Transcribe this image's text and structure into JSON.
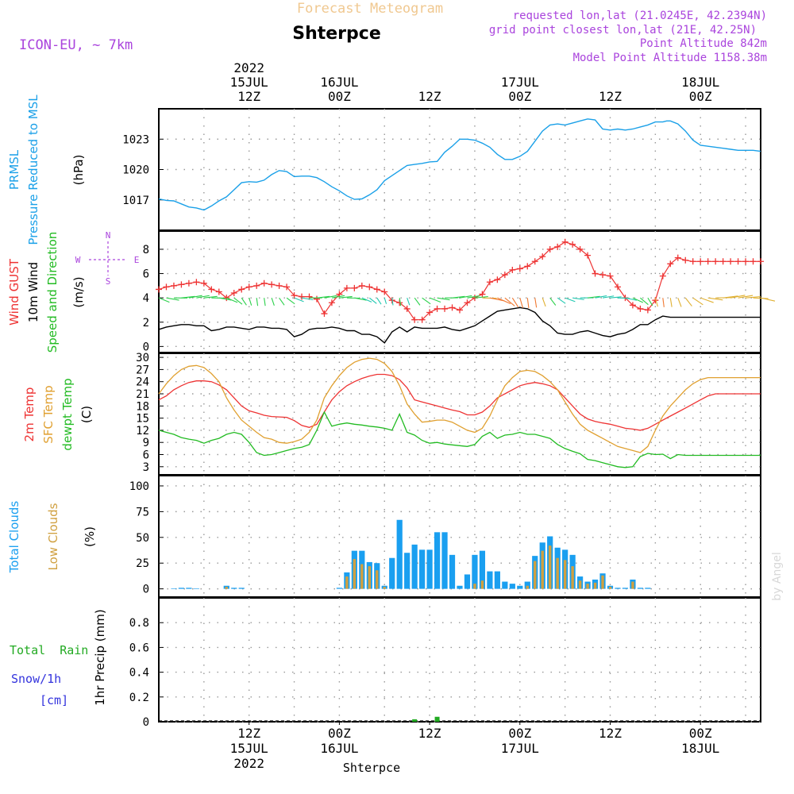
{
  "header": {
    "subtitle": "Forecast Meteogram",
    "location": "Shterpce",
    "model": "ICON-EU, ~ 7km",
    "requested": "requested lon,lat (21.0245E, 42.2394N)",
    "grid_point": "grid point closest lon,lat (21E, 42.25N)",
    "altitude": "Point Altitude 842m",
    "model_altitude": "Model Point Altitude 1158.38m",
    "watermark": "by Angel",
    "footer_location": "Shterpce"
  },
  "colors": {
    "pressure": "#1aa0e8",
    "gust": "#ee3333",
    "wind": "#000000",
    "temp2m": "#ee3333",
    "sfc_temp": "#e0a030",
    "dewpt": "#22bb22",
    "total_clouds": "#1a9ff0",
    "low_clouds": "#d0a040",
    "rain": "#22aa22",
    "snow": "#3333dd",
    "header_purple": "#aa44dd",
    "header_orange": "#f0c890"
  },
  "time_axis": {
    "top_ticks": [
      {
        "h": 12,
        "lines": [
          "2022",
          "15JUL",
          "12Z"
        ]
      },
      {
        "h": 24,
        "lines": [
          "16JUL",
          "00Z"
        ]
      },
      {
        "h": 36,
        "lines": [
          "12Z"
        ]
      },
      {
        "h": 48,
        "lines": [
          "17JUL",
          "00Z"
        ]
      },
      {
        "h": 60,
        "lines": [
          "12Z"
        ]
      },
      {
        "h": 72,
        "lines": [
          "18JUL",
          "00Z"
        ]
      }
    ],
    "bottom_ticks": [
      {
        "h": 12,
        "lines": [
          "12Z",
          "15JUL",
          "2022"
        ]
      },
      {
        "h": 24,
        "lines": [
          "00Z",
          "16JUL"
        ]
      },
      {
        "h": 36,
        "lines": [
          "12Z"
        ]
      },
      {
        "h": 48,
        "lines": [
          "00Z",
          "17JUL"
        ]
      },
      {
        "h": 60,
        "lines": [
          "12Z"
        ]
      },
      {
        "h": 72,
        "lines": [
          "00Z",
          "18JUL"
        ]
      }
    ]
  },
  "panel_labels": {
    "pressure": {
      "l1": "PRMSL",
      "l2": "Pressure Reduced to MSL",
      "unit": "(hPa)"
    },
    "wind": {
      "gust": "Wind GUST",
      "l2": "10m Wind",
      "l3": "Speed and Direction",
      "unit": "(m/s)",
      "compass_n": "N",
      "compass_s": "S",
      "compass_w": "W",
      "compass_e": "E"
    },
    "temp": {
      "l1": "2m Temp",
      "l2": "SFC Temp",
      "l3": "dewpt Temp",
      "unit": "(C)"
    },
    "clouds": {
      "l1": "Total Clouds",
      "l2": "Low Clouds",
      "unit": "(%)"
    },
    "precip": {
      "rain": "Total  Rain",
      "snow": "Snow/1h",
      "snow_unit": "[cm]",
      "axis": "1hr Precip (mm)"
    }
  },
  "chart_data": [
    {
      "type": "line",
      "name": "pressure",
      "ylabel": "(hPa)",
      "ylim": [
        1014,
        1026
      ],
      "yticks": [
        1017,
        1020,
        1023
      ],
      "x": [
        0,
        1,
        2,
        3,
        4,
        5,
        6,
        7,
        8,
        9,
        10,
        11,
        12,
        13,
        14,
        15,
        16,
        17,
        18,
        19,
        20,
        21,
        22,
        23,
        24,
        25,
        26,
        27,
        28,
        29,
        30,
        31,
        32,
        33,
        34,
        35,
        36,
        37,
        38,
        39,
        40,
        41,
        42,
        43,
        44,
        45,
        46,
        47,
        48,
        49,
        50,
        51,
        52,
        53,
        54,
        55,
        56,
        57,
        58,
        59,
        60,
        61,
        62,
        63,
        64,
        65,
        66,
        67,
        67.5,
        68,
        69,
        70,
        71,
        72,
        73,
        74,
        75,
        76,
        77,
        78,
        79,
        80
      ],
      "series": [
        {
          "values": [
            1017.1,
            1016.95,
            1016.9,
            1016.6,
            1016.3,
            1016.2,
            1016.0,
            1016.4,
            1016.9,
            1017.3,
            1018.0,
            1018.7,
            1018.8,
            1018.75,
            1018.95,
            1019.5,
            1019.9,
            1019.8,
            1019.3,
            1019.35,
            1019.35,
            1019.2,
            1018.8,
            1018.3,
            1017.9,
            1017.4,
            1017.05,
            1017.1,
            1017.5,
            1018.0,
            1018.9,
            1019.4,
            1019.9,
            1020.4,
            1020.5,
            1020.6,
            1020.75,
            1020.8,
            1021.7,
            1022.3,
            1023.0,
            1023.0,
            1022.9,
            1022.6,
            1022.2,
            1021.5,
            1021.0,
            1021.0,
            1021.3,
            1021.8,
            1022.8,
            1023.8,
            1024.4,
            1024.5,
            1024.4,
            1024.6,
            1024.8,
            1025.0,
            1024.9,
            1024.0,
            1023.9,
            1024.0,
            1023.9,
            1024.0,
            1024.2,
            1024.4,
            1024.7,
            1024.7,
            1024.8,
            1024.8,
            1024.5,
            1023.8,
            1022.9,
            1022.4,
            1022.3,
            1022.2,
            1022.1,
            1022.0,
            1021.9,
            1021.9,
            1021.9,
            1021.8
          ]
        }
      ]
    },
    {
      "type": "line",
      "name": "wind",
      "ylabel": "(m/s)",
      "ylim": [
        -0.5,
        9.5
      ],
      "yticks": [
        0,
        2,
        4,
        6,
        8
      ],
      "x": [
        0,
        1,
        2,
        3,
        4,
        5,
        6,
        7,
        8,
        9,
        10,
        11,
        12,
        13,
        14,
        15,
        16,
        17,
        18,
        19,
        20,
        21,
        22,
        23,
        24,
        25,
        26,
        27,
        28,
        29,
        30,
        31,
        32,
        33,
        34,
        35,
        36,
        37,
        38,
        39,
        40,
        41,
        42,
        43,
        44,
        45,
        46,
        47,
        48,
        49,
        50,
        51,
        52,
        53,
        54,
        55,
        56,
        57,
        58,
        59,
        60,
        61,
        62,
        63,
        64,
        65,
        66,
        67,
        68,
        69,
        70,
        71,
        72,
        73,
        74,
        75,
        76,
        77,
        78,
        79,
        80
      ],
      "series": [
        {
          "name": "Wind GUST",
          "values": [
            4.7,
            4.9,
            5.0,
            5.1,
            5.2,
            5.3,
            5.2,
            4.7,
            4.5,
            4.0,
            4.4,
            4.7,
            4.9,
            5.0,
            5.2,
            5.1,
            5.0,
            4.9,
            4.2,
            4.1,
            4.1,
            3.9,
            2.7,
            3.6,
            4.3,
            4.8,
            4.8,
            5.0,
            4.9,
            4.7,
            4.5,
            3.8,
            3.6,
            3.1,
            2.2,
            2.2,
            2.8,
            3.1,
            3.1,
            3.2,
            3.0,
            3.6,
            4.0,
            4.3,
            5.3,
            5.5,
            5.9,
            6.3,
            6.4,
            6.6,
            7.0,
            7.4,
            8.0,
            8.2,
            8.6,
            8.4,
            8.0,
            7.5,
            6.0,
            5.9,
            5.8,
            4.9,
            4.0,
            3.4,
            3.1,
            3.0,
            3.8,
            5.8,
            6.8,
            7.3,
            7.1,
            7.0,
            7.0,
            7.0,
            7.0,
            7.0,
            7.0,
            7.0,
            7.0,
            7.0,
            7.0
          ]
        },
        {
          "name": "10m Wind",
          "values": [
            1.4,
            1.6,
            1.7,
            1.8,
            1.8,
            1.7,
            1.7,
            1.3,
            1.4,
            1.6,
            1.6,
            1.5,
            1.4,
            1.6,
            1.6,
            1.5,
            1.5,
            1.4,
            0.8,
            1.0,
            1.4,
            1.5,
            1.5,
            1.6,
            1.5,
            1.3,
            1.3,
            1.0,
            1.0,
            0.8,
            0.3,
            1.2,
            1.6,
            1.2,
            1.6,
            1.5,
            1.5,
            1.5,
            1.6,
            1.4,
            1.3,
            1.5,
            1.7,
            2.1,
            2.5,
            2.9,
            3.0,
            3.1,
            3.2,
            3.1,
            2.8,
            2.1,
            1.7,
            1.1,
            1.0,
            1.0,
            1.2,
            1.3,
            1.1,
            0.9,
            0.8,
            1.0,
            1.1,
            1.4,
            1.8,
            1.8,
            2.2,
            2.5,
            2.4,
            2.4,
            2.4,
            2.4,
            2.4,
            2.4,
            2.4,
            2.4,
            2.4,
            2.4,
            2.4,
            2.4,
            2.4
          ]
        }
      ]
    },
    {
      "type": "line",
      "name": "temperature",
      "ylabel": "(C)",
      "ylim": [
        1,
        31
      ],
      "yticks": [
        3,
        6,
        9,
        12,
        15,
        18,
        21,
        24,
        27,
        30
      ],
      "x": [
        0,
        1,
        2,
        3,
        4,
        5,
        6,
        7,
        8,
        9,
        10,
        11,
        12,
        13,
        14,
        15,
        16,
        17,
        18,
        19,
        20,
        21,
        22,
        23,
        24,
        25,
        26,
        27,
        28,
        29,
        30,
        31,
        32,
        33,
        34,
        35,
        36,
        37,
        38,
        39,
        40,
        41,
        42,
        43,
        44,
        45,
        46,
        47,
        48,
        49,
        50,
        51,
        52,
        53,
        54,
        55,
        56,
        57,
        58,
        59,
        60,
        61,
        62,
        63,
        64,
        65,
        66,
        67,
        68,
        69,
        70,
        71,
        72,
        73,
        74,
        75,
        76,
        77,
        78,
        79,
        80
      ],
      "series": [
        {
          "name": "2m Temp",
          "values": [
            19.5,
            20.5,
            22.0,
            23.0,
            23.8,
            24.2,
            24.2,
            24.0,
            23.2,
            22.0,
            20.0,
            18.0,
            16.8,
            16.3,
            15.7,
            15.4,
            15.3,
            15.2,
            14.4,
            13.2,
            12.7,
            13.5,
            16.5,
            19.5,
            21.5,
            23.0,
            24.0,
            24.8,
            25.4,
            25.8,
            25.8,
            25.5,
            24.5,
            22.5,
            19.5,
            19.0,
            18.5,
            18.0,
            17.5,
            17.0,
            16.6,
            15.8,
            15.8,
            16.5,
            18.0,
            20.0,
            21.0,
            22.0,
            23.0,
            23.5,
            23.8,
            23.5,
            23.0,
            22.0,
            20.0,
            18.0,
            16.0,
            14.8,
            14.2,
            13.8,
            13.5,
            13.0,
            12.5,
            12.3,
            12.0,
            12.5,
            13.5,
            14.5,
            15.5,
            16.5,
            17.5,
            18.5,
            19.5,
            20.5,
            21.0,
            21.0,
            21.0,
            21.0,
            21.0,
            21.0,
            21.0
          ]
        },
        {
          "name": "SFC Temp",
          "values": [
            21.0,
            23.5,
            25.5,
            27.0,
            27.8,
            28.0,
            27.5,
            26.0,
            24.0,
            20.0,
            17.0,
            14.5,
            13.0,
            11.5,
            10.2,
            9.8,
            9.0,
            8.8,
            9.2,
            9.8,
            11.5,
            14.5,
            20.0,
            23.0,
            25.5,
            27.5,
            28.8,
            29.5,
            29.8,
            29.5,
            28.5,
            26.5,
            23.0,
            18.5,
            16.0,
            14.0,
            14.2,
            14.5,
            14.5,
            14.0,
            13.0,
            12.0,
            11.5,
            12.5,
            15.5,
            19.5,
            23.0,
            25.0,
            26.5,
            26.8,
            26.5,
            25.5,
            24.0,
            22.0,
            19.0,
            16.0,
            13.5,
            12.0,
            11.0,
            10.0,
            9.0,
            8.0,
            7.5,
            7.0,
            6.5,
            8.0,
            12.0,
            15.5,
            18.0,
            20.0,
            22.0,
            23.5,
            24.5,
            25.0,
            25.0,
            25.0,
            25.0,
            25.0,
            25.0,
            25.0,
            25.0
          ]
        },
        {
          "name": "dewpt Temp",
          "values": [
            12.0,
            11.5,
            11.0,
            10.2,
            9.8,
            9.5,
            8.8,
            9.5,
            10.0,
            11.0,
            11.5,
            11.0,
            9.0,
            6.5,
            5.8,
            6.0,
            6.5,
            7.0,
            7.5,
            7.8,
            8.5,
            12.0,
            16.5,
            13.0,
            13.5,
            13.8,
            13.5,
            13.3,
            13.0,
            12.8,
            12.5,
            12.0,
            16.0,
            11.5,
            10.8,
            9.5,
            8.8,
            9.0,
            8.6,
            8.4,
            8.2,
            8.0,
            8.5,
            10.5,
            11.5,
            10.0,
            10.8,
            11.0,
            11.5,
            11.0,
            11.0,
            10.5,
            10.0,
            8.5,
            7.5,
            6.8,
            6.2,
            4.8,
            4.5,
            4.0,
            3.5,
            3.0,
            2.8,
            3.0,
            5.5,
            6.3,
            6.0,
            6.1,
            5.0,
            6.0,
            5.8,
            5.8,
            5.8,
            5.8,
            5.8,
            5.8,
            5.8,
            5.8,
            5.8,
            5.8,
            5.8
          ]
        }
      ]
    },
    {
      "type": "bar",
      "name": "clouds",
      "ylabel": "(%)",
      "ylim": [
        -8,
        110
      ],
      "yticks": [
        0,
        25,
        50,
        75,
        100
      ],
      "x": [
        0,
        1,
        2,
        3,
        4,
        5,
        6,
        7,
        8,
        9,
        10,
        11,
        12,
        13,
        14,
        15,
        16,
        17,
        18,
        19,
        20,
        21,
        22,
        23,
        24,
        25,
        26,
        27,
        28,
        29,
        30,
        31,
        32,
        33,
        34,
        35,
        36,
        37,
        38,
        39,
        40,
        41,
        42,
        43,
        44,
        45,
        46,
        47,
        48,
        49,
        50,
        51,
        52,
        53,
        54,
        55,
        56,
        57,
        58,
        59,
        60,
        61,
        62,
        63,
        64,
        65,
        66,
        67,
        68,
        69,
        70,
        71,
        72,
        73,
        74,
        75,
        76,
        77,
        78,
        79,
        80
      ],
      "series": [
        {
          "name": "Total Clouds",
          "values": [
            0,
            0,
            0.5,
            1,
            1,
            0.5,
            0,
            0,
            0,
            3,
            1,
            1,
            0,
            0,
            0,
            0,
            0,
            0,
            0,
            0,
            0,
            0,
            0,
            0,
            1,
            16,
            37,
            37,
            26,
            25,
            3,
            30,
            67,
            35,
            43,
            38,
            38,
            55,
            55,
            33,
            3,
            14,
            33,
            37,
            17,
            17,
            7,
            5,
            3,
            7,
            32,
            45,
            51,
            40,
            38,
            33,
            12,
            7,
            9,
            15,
            3,
            1,
            1,
            9,
            1,
            1,
            0,
            0,
            0,
            0,
            0,
            0,
            0,
            0,
            0,
            0,
            0,
            0,
            0,
            0,
            0
          ]
        },
        {
          "name": "Low Clouds",
          "values": [
            0,
            0,
            0,
            0,
            0,
            0,
            0,
            0,
            0,
            2,
            0,
            0,
            0,
            0,
            0,
            0,
            0,
            0,
            0,
            0,
            0,
            0,
            0,
            0,
            0,
            12,
            29,
            24,
            22,
            18,
            2,
            0,
            0,
            0,
            0,
            0,
            0,
            0,
            0,
            0,
            0,
            0,
            5,
            8,
            0,
            0,
            0,
            0,
            0,
            3,
            27,
            37,
            42,
            30,
            28,
            22,
            8,
            5,
            6,
            13,
            2,
            0,
            0,
            7,
            0,
            0,
            0,
            0,
            0,
            0,
            0,
            0,
            0,
            0,
            0,
            0,
            0,
            0,
            0,
            0,
            0
          ]
        }
      ]
    },
    {
      "type": "bar",
      "name": "precip",
      "ylabel": "1hr Precip (mm)",
      "ylim": [
        0,
        1.0
      ],
      "yticks": [
        0,
        0.2,
        0.4,
        0.6,
        0.8
      ],
      "x": [
        34,
        37
      ],
      "series": [
        {
          "name": "Total Rain",
          "values": [
            0.02,
            0.04
          ]
        }
      ]
    }
  ]
}
